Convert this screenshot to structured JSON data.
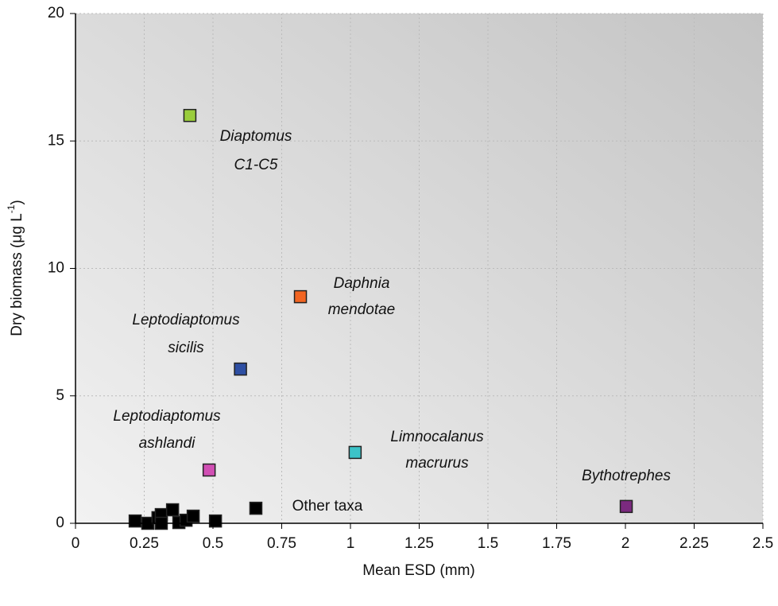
{
  "chart_data": {
    "type": "scatter",
    "xlabel": "Mean ESD (mm)",
    "ylabel": [
      "Dry biomass (μg L",
      "-1",
      ")"
    ],
    "xlim": [
      0,
      2.5
    ],
    "ylim": [
      0,
      20
    ],
    "xticks": [
      0,
      0.25,
      0.5,
      0.75,
      1,
      1.25,
      1.5,
      1.75,
      2,
      2.25,
      2.5
    ],
    "yticks": [
      0,
      5,
      10,
      15,
      20
    ],
    "grid": true,
    "series": [
      {
        "name": [
          "Diaptomus",
          "C1-C5"
        ],
        "color": "#9acd3c",
        "x": [
          0.416
        ],
        "values": [
          16.0
        ]
      },
      {
        "name": [
          "Daphnia",
          "mendotae"
        ],
        "color": "#f26522",
        "x": [
          0.818
        ],
        "values": [
          8.89
        ]
      },
      {
        "name": [
          "Leptodiaptomus",
          "sicilis"
        ],
        "color": "#2e4fa3",
        "x": [
          0.6
        ],
        "values": [
          6.05
        ]
      },
      {
        "name": [
          "Leptodiaptomus",
          "ashlandi"
        ],
        "color": "#d14fb4",
        "x": [
          0.486
        ],
        "values": [
          2.09
        ]
      },
      {
        "name": [
          "Limnocalanus",
          "macrurus"
        ],
        "color": "#3cc3c8",
        "x": [
          1.017
        ],
        "values": [
          2.78
        ]
      },
      {
        "name": [
          "Bythotrephes"
        ],
        "color": "#7b2a7f",
        "x": [
          2.003
        ],
        "values": [
          0.66
        ]
      },
      {
        "name": [
          "Other taxa"
        ],
        "color": "#000000",
        "x": [
          0.217,
          0.263,
          0.3,
          0.312,
          0.312,
          0.353,
          0.376,
          0.402,
          0.428,
          0.509,
          0.656
        ],
        "values": [
          0.09,
          0,
          0.22,
          0.34,
          0,
          0.53,
          0.03,
          0.12,
          0.28,
          0.09,
          0.59
        ]
      }
    ]
  }
}
